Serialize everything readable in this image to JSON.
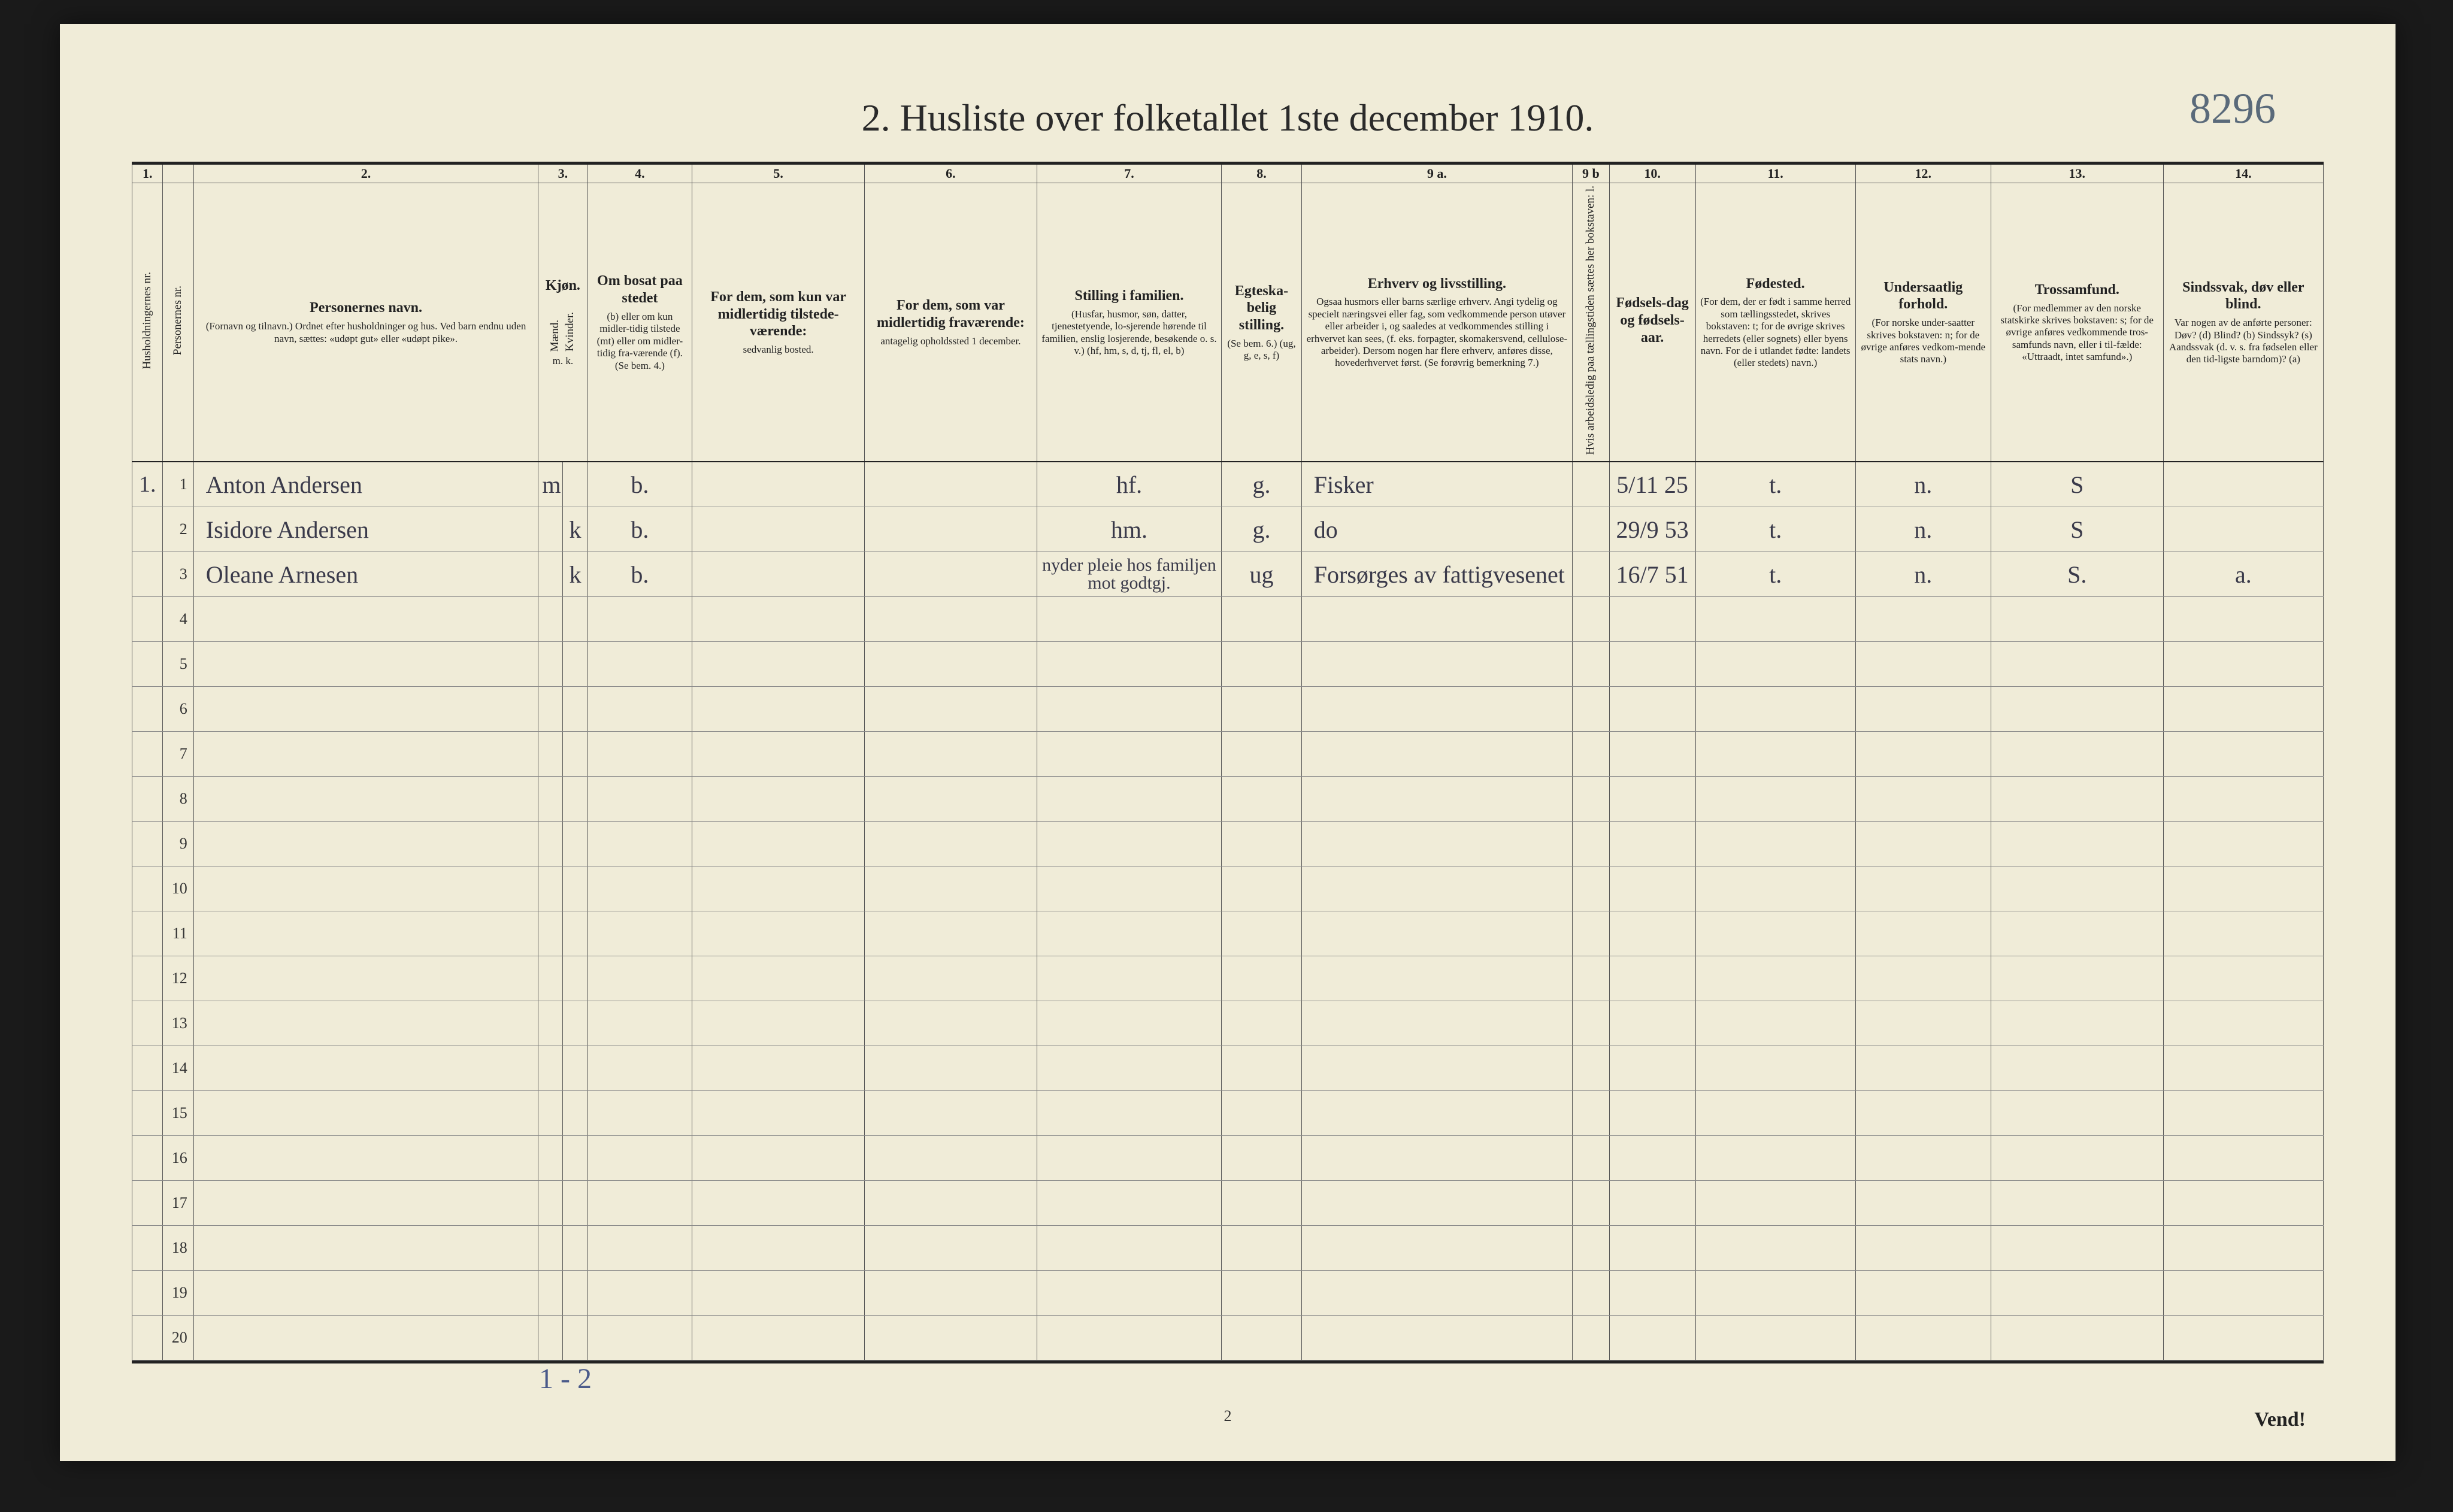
{
  "title": "2.  Husliste over folketallet 1ste december 1910.",
  "annotation_top_right": "8296",
  "foot_page_number": "2",
  "foot_vend": "Vend!",
  "foot_annotation": "1 - 2",
  "column_numbers": [
    "1.",
    "",
    "2.",
    "3.",
    "",
    "4.",
    "5.",
    "6.",
    "7.",
    "8.",
    "9 a.",
    "9 b",
    "10.",
    "11.",
    "12.",
    "13.",
    "14."
  ],
  "columns": {
    "c1": {
      "main": "",
      "sub": "Husholdningernes nr."
    },
    "c1b": {
      "main": "",
      "sub": "Personernes nr."
    },
    "c2": {
      "main": "Personernes navn.",
      "sub": "(Fornavn og tilnavn.)\nOrdnet efter husholdninger og hus.\nVed barn endnu uden navn, sættes: «udøpt gut»\neller «udøpt pike»."
    },
    "c3": {
      "main": "Kjøn.",
      "sub_m": "Mænd.",
      "sub_k": "Kvinder.",
      "sub": "m. k."
    },
    "c4": {
      "main": "Om bosat paa stedet",
      "sub": "(b) eller om kun midler-tidig tilstede (mt) eller om midler-tidig fra-værende (f).\n(Se bem. 4.)"
    },
    "c5": {
      "main": "For dem, som kun var midlertidig tilstede-værende:",
      "sub": "sedvanlig bosted."
    },
    "c6": {
      "main": "For dem, som var midlertidig fraværende:",
      "sub": "antagelig opholdssted 1 december."
    },
    "c7": {
      "main": "Stilling i familien.",
      "sub": "(Husfar, husmor, søn, datter, tjenestetyende, lo-sjerende hørende til familien, enslig losjerende, besøkende o. s. v.)\n(hf, hm, s, d, tj, fl, el, b)"
    },
    "c8": {
      "main": "Egteska-belig stilling.",
      "sub": "(Se bem. 6.)\n(ug, g, e, s, f)"
    },
    "c9a": {
      "main": "Erhverv og livsstilling.",
      "sub": "Ogsaa husmors eller barns særlige erhverv. Angi tydelig og specielt næringsvei eller fag, som vedkommende person utøver eller arbeider i, og saaledes at vedkommendes stilling i erhvervet kan sees, (f. eks. forpagter, skomakersvend, cellulose-arbeider). Dersom nogen har flere erhverv, anføres disse, hovederhvervet først.\n(Se forøvrig bemerkning 7.)"
    },
    "c9b": {
      "main": "",
      "sub": "Hvis arbeidsledig paa tællingstiden sættes her bokstaven: l."
    },
    "c10": {
      "main": "Fødsels-dag og fødsels-aar.",
      "sub": ""
    },
    "c11": {
      "main": "Fødested.",
      "sub": "(For dem, der er født i samme herred som tællingsstedet, skrives bokstaven: t; for de øvrige skrives herredets (eller sognets) eller byens navn. For de i utlandet fødte: landets (eller stedets) navn.)"
    },
    "c12": {
      "main": "Undersaatlig forhold.",
      "sub": "(For norske under-saatter skrives bokstaven: n; for de øvrige anføres vedkom-mende stats navn.)"
    },
    "c13": {
      "main": "Trossamfund.",
      "sub": "(For medlemmer av den norske statskirke skrives bokstaven: s; for de øvrige anføres vedkommende tros-samfunds navn, eller i til-fælde: «Uttraadt, intet samfund».)"
    },
    "c14": {
      "main": "Sindssvak, døv eller blind.",
      "sub": "Var nogen av de anførte personer:\nDøv? (d)\nBlind? (b)\nSindssyk? (s)\nAandssvak (d. v. s. fra fødselen eller den tid-ligste barndom)? (a)"
    }
  },
  "rows": [
    {
      "hush": "1.",
      "num": "1",
      "name": "Anton Andersen",
      "sex": "m",
      "bosat": "b.",
      "midt": "",
      "frav": "",
      "stilling": "hf.",
      "egt": "g.",
      "erhverv": "Fisker",
      "9b": "",
      "fdag": "5/11 25",
      "fsted": "t.",
      "under": "n.",
      "tros": "S",
      "sind": ""
    },
    {
      "hush": "",
      "num": "2",
      "name": "Isidore Andersen",
      "sex": "k",
      "bosat": "b.",
      "midt": "",
      "frav": "",
      "stilling": "hm.",
      "egt": "g.",
      "erhverv": "do",
      "9b": "",
      "fdag": "29/9 53",
      "fsted": "t.",
      "under": "n.",
      "tros": "S",
      "sind": ""
    },
    {
      "hush": "",
      "num": "3",
      "name": "Oleane Arnesen",
      "sex": "k",
      "bosat": "b.",
      "midt": "",
      "frav": "",
      "stilling": "nyder pleie hos familjen mot godtgj.",
      "egt": "ug",
      "erhverv": "Forsørges av fattigvesenet",
      "9b": "",
      "fdag": "16/7 51",
      "fsted": "t.",
      "under": "n.",
      "tros": "S.",
      "sind": "a."
    }
  ],
  "empty_rows": [
    "4",
    "5",
    "6",
    "7",
    "8",
    "9",
    "10",
    "11",
    "12",
    "13",
    "14",
    "15",
    "16",
    "17",
    "18",
    "19",
    "20"
  ]
}
